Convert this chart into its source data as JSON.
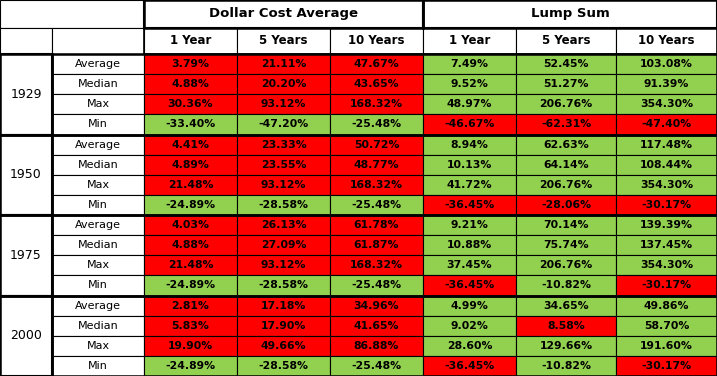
{
  "title_dca": "Dollar Cost Average",
  "title_lump": "Lump Sum",
  "col_headers": [
    "1 Year",
    "5 Years",
    "10 Years",
    "1 Year",
    "5 Years",
    "10 Years"
  ],
  "row_groups": [
    "1929",
    "1950",
    "1975",
    "2000"
  ],
  "row_labels": [
    "Average",
    "Median",
    "Max",
    "Min"
  ],
  "values": {
    "1929": {
      "Average": [
        "3.79%",
        "21.11%",
        "47.67%",
        "7.49%",
        "52.45%",
        "103.08%"
      ],
      "Median": [
        "4.88%",
        "20.20%",
        "43.65%",
        "9.52%",
        "51.27%",
        "91.39%"
      ],
      "Max": [
        "30.36%",
        "93.12%",
        "168.32%",
        "48.97%",
        "206.76%",
        "354.30%"
      ],
      "Min": [
        "-33.40%",
        "-47.20%",
        "-25.48%",
        "-46.67%",
        "-62.31%",
        "-47.40%"
      ]
    },
    "1950": {
      "Average": [
        "4.41%",
        "23.33%",
        "50.72%",
        "8.94%",
        "62.63%",
        "117.48%"
      ],
      "Median": [
        "4.89%",
        "23.55%",
        "48.77%",
        "10.13%",
        "64.14%",
        "108.44%"
      ],
      "Max": [
        "21.48%",
        "93.12%",
        "168.32%",
        "41.72%",
        "206.76%",
        "354.30%"
      ],
      "Min": [
        "-24.89%",
        "-28.58%",
        "-25.48%",
        "-36.45%",
        "-28.06%",
        "-30.17%"
      ]
    },
    "1975": {
      "Average": [
        "4.03%",
        "26.13%",
        "61.78%",
        "9.21%",
        "70.14%",
        "139.39%"
      ],
      "Median": [
        "4.88%",
        "27.09%",
        "61.87%",
        "10.88%",
        "75.74%",
        "137.45%"
      ],
      "Max": [
        "21.48%",
        "93.12%",
        "168.32%",
        "37.45%",
        "206.76%",
        "354.30%"
      ],
      "Min": [
        "-24.89%",
        "-28.58%",
        "-25.48%",
        "-36.45%",
        "-10.82%",
        "-30.17%"
      ]
    },
    "2000": {
      "Average": [
        "2.81%",
        "17.18%",
        "34.96%",
        "4.99%",
        "34.65%",
        "49.86%"
      ],
      "Median": [
        "5.83%",
        "17.90%",
        "41.65%",
        "9.02%",
        "8.58%",
        "58.70%"
      ],
      "Max": [
        "19.90%",
        "49.66%",
        "86.88%",
        "28.60%",
        "129.66%",
        "191.60%"
      ],
      "Min": [
        "-24.89%",
        "-28.58%",
        "-25.48%",
        "-36.45%",
        "-10.82%",
        "-30.17%"
      ]
    }
  },
  "cell_colors": {
    "1929": {
      "Average": [
        "#FF0000",
        "#FF0000",
        "#FF0000",
        "#92D050",
        "#92D050",
        "#92D050"
      ],
      "Median": [
        "#FF0000",
        "#FF0000",
        "#FF0000",
        "#92D050",
        "#92D050",
        "#92D050"
      ],
      "Max": [
        "#FF0000",
        "#FF0000",
        "#FF0000",
        "#92D050",
        "#92D050",
        "#92D050"
      ],
      "Min": [
        "#92D050",
        "#92D050",
        "#92D050",
        "#FF0000",
        "#FF0000",
        "#FF0000"
      ]
    },
    "1950": {
      "Average": [
        "#FF0000",
        "#FF0000",
        "#FF0000",
        "#92D050",
        "#92D050",
        "#92D050"
      ],
      "Median": [
        "#FF0000",
        "#FF0000",
        "#FF0000",
        "#92D050",
        "#92D050",
        "#92D050"
      ],
      "Max": [
        "#FF0000",
        "#FF0000",
        "#FF0000",
        "#92D050",
        "#92D050",
        "#92D050"
      ],
      "Min": [
        "#92D050",
        "#92D050",
        "#92D050",
        "#FF0000",
        "#FF0000",
        "#FF0000"
      ]
    },
    "1975": {
      "Average": [
        "#FF0000",
        "#FF0000",
        "#FF0000",
        "#92D050",
        "#92D050",
        "#92D050"
      ],
      "Median": [
        "#FF0000",
        "#FF0000",
        "#FF0000",
        "#92D050",
        "#92D050",
        "#92D050"
      ],
      "Max": [
        "#FF0000",
        "#FF0000",
        "#FF0000",
        "#92D050",
        "#92D050",
        "#92D050"
      ],
      "Min": [
        "#92D050",
        "#92D050",
        "#92D050",
        "#FF0000",
        "#92D050",
        "#FF0000"
      ]
    },
    "2000": {
      "Average": [
        "#FF0000",
        "#FF0000",
        "#FF0000",
        "#92D050",
        "#92D050",
        "#92D050"
      ],
      "Median": [
        "#FF0000",
        "#FF0000",
        "#FF0000",
        "#92D050",
        "#FF0000",
        "#92D050"
      ],
      "Max": [
        "#FF0000",
        "#FF0000",
        "#FF0000",
        "#92D050",
        "#92D050",
        "#92D050"
      ],
      "Min": [
        "#92D050",
        "#92D050",
        "#92D050",
        "#FF0000",
        "#92D050",
        "#FF0000"
      ]
    }
  },
  "figsize": [
    7.17,
    3.76
  ],
  "dpi": 100
}
